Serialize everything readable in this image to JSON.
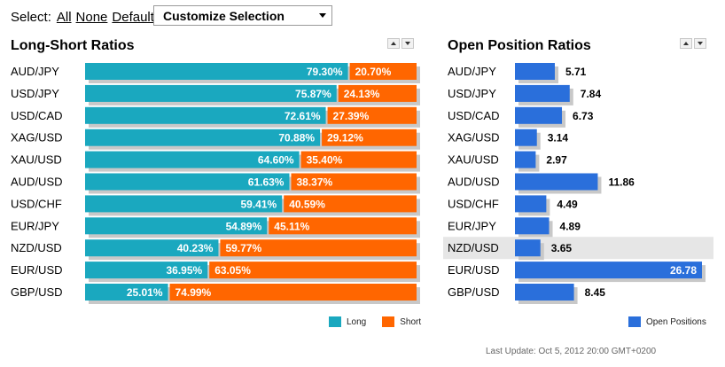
{
  "select": {
    "label": "Select:",
    "all": "All",
    "none": "None",
    "default": "Default",
    "dropdown_value": "Customize Selection"
  },
  "colors": {
    "long": "#1aa8bf",
    "short": "#ff6600",
    "open": "#2a6fdb",
    "shadow": "#c8c8c8",
    "highlight_row": "#e6e6e6"
  },
  "long_short": {
    "title": "Long-Short Ratios",
    "legend_long": "Long",
    "legend_short": "Short"
  },
  "open_positions": {
    "title": "Open Position Ratios",
    "legend": "Open Positions"
  },
  "last_update": "Last Update: Oct 5, 2012 20:00 GMT+0200",
  "chart_data": [
    {
      "type": "bar",
      "title": "Long-Short Ratios",
      "orientation": "horizontal",
      "stacked": true,
      "categories": [
        "AUD/JPY",
        "USD/JPY",
        "USD/CAD",
        "XAG/USD",
        "XAU/USD",
        "AUD/USD",
        "USD/CHF",
        "EUR/JPY",
        "NZD/USD",
        "EUR/USD",
        "GBP/USD"
      ],
      "series": [
        {
          "name": "Long",
          "values": [
            79.3,
            75.87,
            72.61,
            70.88,
            64.6,
            61.63,
            59.41,
            54.89,
            40.23,
            36.95,
            25.01
          ],
          "labels": [
            "79.30%",
            "75.87%",
            "72.61%",
            "70.88%",
            "64.60%",
            "61.63%",
            "59.41%",
            "54.89%",
            "40.23%",
            "36.95%",
            "25.01%"
          ]
        },
        {
          "name": "Short",
          "values": [
            20.7,
            24.13,
            27.39,
            29.12,
            35.4,
            38.37,
            40.59,
            45.11,
            59.77,
            63.05,
            74.99
          ],
          "labels": [
            "20.70%",
            "24.13%",
            "27.39%",
            "29.12%",
            "35.40%",
            "38.37%",
            "40.59%",
            "45.11%",
            "59.77%",
            "63.05%",
            "74.99%"
          ]
        }
      ],
      "xlim": [
        0,
        100
      ],
      "legend": "bottom-right"
    },
    {
      "type": "bar",
      "title": "Open Position Ratios",
      "orientation": "horizontal",
      "categories": [
        "AUD/JPY",
        "USD/JPY",
        "USD/CAD",
        "XAG/USD",
        "XAU/USD",
        "AUD/USD",
        "USD/CHF",
        "EUR/JPY",
        "NZD/USD",
        "EUR/USD",
        "GBP/USD"
      ],
      "series": [
        {
          "name": "Open Positions",
          "values": [
            5.71,
            7.84,
            6.73,
            3.14,
            2.97,
            11.86,
            4.49,
            4.89,
            3.65,
            26.78,
            8.45
          ],
          "labels": [
            "5.71",
            "7.84",
            "6.73",
            "3.14",
            "2.97",
            "11.86",
            "4.49",
            "4.89",
            "3.65",
            "26.78",
            "8.45"
          ]
        }
      ],
      "highlighted_category": "NZD/USD",
      "xlim": [
        0,
        26.78
      ],
      "legend": "bottom-right"
    }
  ]
}
